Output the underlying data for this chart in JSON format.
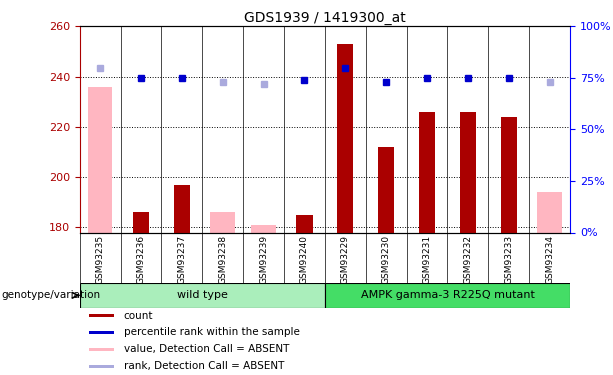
{
  "title": "GDS1939 / 1419300_at",
  "samples": [
    "GSM93235",
    "GSM93236",
    "GSM93237",
    "GSM93238",
    "GSM93239",
    "GSM93240",
    "GSM93229",
    "GSM93230",
    "GSM93231",
    "GSM93232",
    "GSM93233",
    "GSM93234"
  ],
  "count_values": [
    null,
    186,
    197,
    null,
    null,
    185,
    253,
    212,
    226,
    226,
    224,
    null
  ],
  "count_absent_values": [
    236,
    null,
    null,
    186,
    181,
    null,
    null,
    null,
    null,
    null,
    null,
    194
  ],
  "rank_present_values": [
    null,
    75,
    75,
    null,
    null,
    74,
    80,
    73,
    75,
    75,
    75,
    null
  ],
  "rank_absent_values": [
    80,
    null,
    null,
    73,
    72,
    null,
    null,
    null,
    null,
    null,
    null,
    73
  ],
  "ylim_left": [
    178,
    260
  ],
  "ylim_right": [
    0,
    100
  ],
  "yticks_left": [
    180,
    200,
    220,
    240,
    260
  ],
  "yticks_right": [
    0,
    25,
    50,
    75,
    100
  ],
  "color_count_present": "#AA0000",
  "color_count_absent": "#FFB6C1",
  "color_rank_present": "#0000CC",
  "color_rank_absent": "#AAAADD",
  "bg_color": "#FFFFFF",
  "plot_bg": "#FFFFFF",
  "tick_area_bg": "#CCCCCC",
  "group_wt_color": "#AAEEBB",
  "group_mut_color": "#44DD66",
  "legend_items": [
    {
      "label": "count",
      "color": "#AA0000",
      "marker": "s"
    },
    {
      "label": "percentile rank within the sample",
      "color": "#0000CC",
      "marker": "s"
    },
    {
      "label": "value, Detection Call = ABSENT",
      "color": "#FFB6C1",
      "marker": "s"
    },
    {
      "label": "rank, Detection Call = ABSENT",
      "color": "#AAAADD",
      "marker": "s"
    }
  ],
  "genotype_label": "genotype/variation"
}
